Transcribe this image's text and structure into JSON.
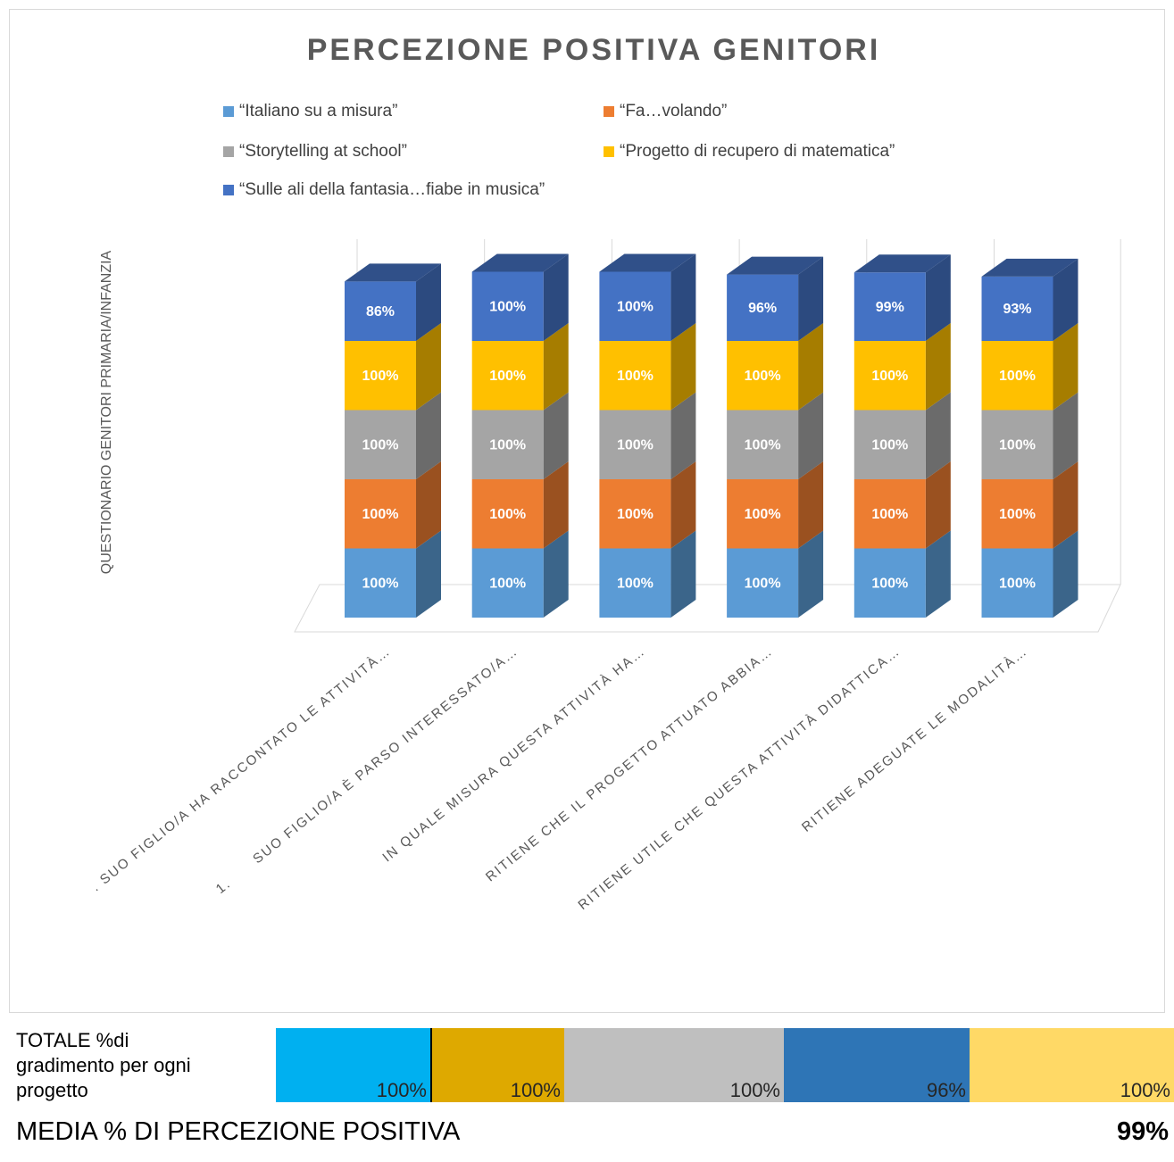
{
  "chart_data": {
    "type": "bar3d_stacked",
    "title": "PERCEZIONE POSITIVA GENITORI",
    "y_label": "QUESTIONARIO GENITORI PRIMARIA/INFANZIA",
    "categories": [
      ". SUO FIGLIO/A HA RACCONTATO LE ATTIVITÀ…",
      "1.      SUO FIGLIO/A È PARSO INTERESSATO/A…",
      "IN QUALE MISURA QUESTA ATTIVITÀ HA…",
      "RITIENE CHE IL PROGETTO ATTUATO ABBIA…",
      "RITIENE UTILE CHE QUESTA ATTIVITÀ DIDATTICA…",
      "RITIENE ADEGUATE LE MODALITÀ…"
    ],
    "series": [
      {
        "name": "“Italiano su a misura”",
        "color": "#5b9bd5",
        "values": [
          100,
          100,
          100,
          100,
          100,
          100
        ],
        "value_labels": [
          "100%",
          "100%",
          "100%",
          "100%",
          "100%",
          "100%"
        ]
      },
      {
        "name": "“Fa…volando”",
        "color": "#ed7d31",
        "values": [
          100,
          100,
          100,
          100,
          100,
          100
        ],
        "value_labels": [
          "100%",
          "100%",
          "100%",
          "100%",
          "100%",
          "100%"
        ]
      },
      {
        "name": "“Storytelling at school”",
        "color": "#a5a5a5",
        "values": [
          100,
          100,
          100,
          100,
          100,
          100
        ],
        "value_labels": [
          "100%",
          "100%",
          "100%",
          "100%",
          "100%",
          "100%"
        ]
      },
      {
        "name": "“Progetto di recupero di matematica”",
        "color": "#ffc000",
        "values": [
          100,
          100,
          100,
          100,
          100,
          100
        ],
        "value_labels": [
          "100%",
          "100%",
          "100%",
          "100%",
          "100%",
          "100%"
        ]
      },
      {
        "name": "“Sulle ali della fantasia…fiabe in musica”",
        "color": "#4472c4",
        "values": [
          86,
          100,
          100,
          96,
          99,
          93
        ],
        "value_labels": [
          "86%",
          "100%",
          "100%",
          "96%",
          "99%",
          "93%"
        ]
      }
    ],
    "ylim": [
      0,
      500
    ]
  },
  "summary": {
    "label_lines": [
      "TOTALE %di",
      "gradimento per ogni",
      "progetto"
    ],
    "cells": [
      "100%",
      "100%",
      "100%",
      "96%",
      "100%"
    ],
    "colors": [
      "#00b0f0",
      "#dea900",
      "#bfbfbf",
      "#2e75b6",
      "#ffd966"
    ],
    "mean_label": "MEDIA % DI PERCEZIONE POSITIVA",
    "mean_value": "99%"
  }
}
